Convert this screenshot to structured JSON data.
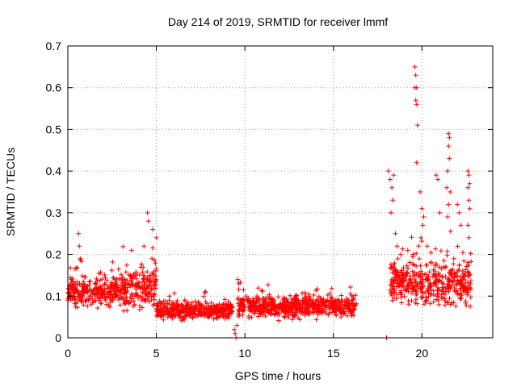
{
  "chart_data": {
    "type": "scatter",
    "title": "Day 214 of 2019, SRMTID for receiver lmmf",
    "xlabel": "GPS time / hours",
    "ylabel": "SRMTID / TECUs",
    "xlim": [
      0,
      24
    ],
    "ylim": [
      0,
      0.7
    ],
    "xticks": [
      0,
      5,
      10,
      15,
      20
    ],
    "yticks": [
      0,
      0.1,
      0.2,
      0.3,
      0.4,
      0.5,
      0.6,
      0.7
    ],
    "xtick_labels": [
      "0",
      "5",
      "10",
      "15",
      "20"
    ],
    "ytick_labels": [
      "0",
      "0.1",
      "0.2",
      "0.3",
      "0.4",
      "0.5",
      "0.6",
      "0.7"
    ],
    "grid": true,
    "marker": "+",
    "series_color": "#ff0000",
    "segments": [
      {
        "x_start": 0.0,
        "x_end": 2.8,
        "base": 0.11,
        "spread": 0.04
      },
      {
        "x_start": 2.8,
        "x_end": 5.0,
        "base": 0.12,
        "spread": 0.06
      },
      {
        "x_start": 5.0,
        "x_end": 9.3,
        "base": 0.065,
        "spread": 0.025
      },
      {
        "x_start": 9.6,
        "x_end": 16.3,
        "base": 0.075,
        "spread": 0.03
      },
      {
        "x_start": 18.2,
        "x_end": 22.8,
        "base": 0.13,
        "spread": 0.06
      }
    ],
    "notable_points": [
      {
        "x": 0.6,
        "y": 0.25
      },
      {
        "x": 0.65,
        "y": 0.22
      },
      {
        "x": 0.7,
        "y": 0.19
      },
      {
        "x": 4.5,
        "y": 0.3
      },
      {
        "x": 4.55,
        "y": 0.28
      },
      {
        "x": 4.8,
        "y": 0.26
      },
      {
        "x": 5.0,
        "y": 0.24
      },
      {
        "x": 4.3,
        "y": 0.22
      },
      {
        "x": 3.6,
        "y": 0.21
      },
      {
        "x": 9.4,
        "y": 0.02
      },
      {
        "x": 9.45,
        "y": 0.01
      },
      {
        "x": 9.5,
        "y": 0.0
      },
      {
        "x": 9.55,
        "y": 0.03
      },
      {
        "x": 9.6,
        "y": 0.14
      },
      {
        "x": 9.65,
        "y": 0.13
      },
      {
        "x": 18.0,
        "y": 0.0
      },
      {
        "x": 18.1,
        "y": 0.4
      },
      {
        "x": 18.2,
        "y": 0.38
      },
      {
        "x": 18.3,
        "y": 0.36
      },
      {
        "x": 18.4,
        "y": 0.39
      },
      {
        "x": 18.35,
        "y": 0.33
      },
      {
        "x": 18.25,
        "y": 0.3
      },
      {
        "x": 18.5,
        "y": 0.25
      },
      {
        "x": 18.6,
        "y": 0.22
      },
      {
        "x": 19.6,
        "y": 0.65
      },
      {
        "x": 19.65,
        "y": 0.63
      },
      {
        "x": 19.6,
        "y": 0.6
      },
      {
        "x": 19.7,
        "y": 0.6
      },
      {
        "x": 19.65,
        "y": 0.57
      },
      {
        "x": 19.7,
        "y": 0.56
      },
      {
        "x": 19.75,
        "y": 0.51
      },
      {
        "x": 19.7,
        "y": 0.42
      },
      {
        "x": 19.9,
        "y": 0.35
      },
      {
        "x": 20.0,
        "y": 0.31
      },
      {
        "x": 20.1,
        "y": 0.29
      },
      {
        "x": 20.05,
        "y": 0.27
      },
      {
        "x": 19.95,
        "y": 0.24
      },
      {
        "x": 20.8,
        "y": 0.39
      },
      {
        "x": 20.9,
        "y": 0.38
      },
      {
        "x": 21.0,
        "y": 0.3
      },
      {
        "x": 21.5,
        "y": 0.49
      },
      {
        "x": 21.55,
        "y": 0.48
      },
      {
        "x": 21.5,
        "y": 0.46
      },
      {
        "x": 21.55,
        "y": 0.43
      },
      {
        "x": 21.45,
        "y": 0.4
      },
      {
        "x": 21.4,
        "y": 0.36
      },
      {
        "x": 21.6,
        "y": 0.35
      },
      {
        "x": 21.5,
        "y": 0.32
      },
      {
        "x": 21.45,
        "y": 0.29
      },
      {
        "x": 22.0,
        "y": 0.32
      },
      {
        "x": 22.1,
        "y": 0.3
      },
      {
        "x": 22.2,
        "y": 0.27
      },
      {
        "x": 22.6,
        "y": 0.4
      },
      {
        "x": 22.65,
        "y": 0.39
      },
      {
        "x": 22.7,
        "y": 0.37
      },
      {
        "x": 22.6,
        "y": 0.36
      },
      {
        "x": 22.65,
        "y": 0.33
      },
      {
        "x": 22.7,
        "y": 0.31
      },
      {
        "x": 22.6,
        "y": 0.27
      },
      {
        "x": 22.65,
        "y": 0.24
      },
      {
        "x": 18.8,
        "y": 0.2
      },
      {
        "x": 19.2,
        "y": 0.21
      },
      {
        "x": 19.5,
        "y": 0.2
      },
      {
        "x": 20.3,
        "y": 0.22
      },
      {
        "x": 20.5,
        "y": 0.18
      },
      {
        "x": 21.2,
        "y": 0.17
      },
      {
        "x": 21.8,
        "y": 0.19
      },
      {
        "x": 22.3,
        "y": 0.16
      }
    ]
  }
}
